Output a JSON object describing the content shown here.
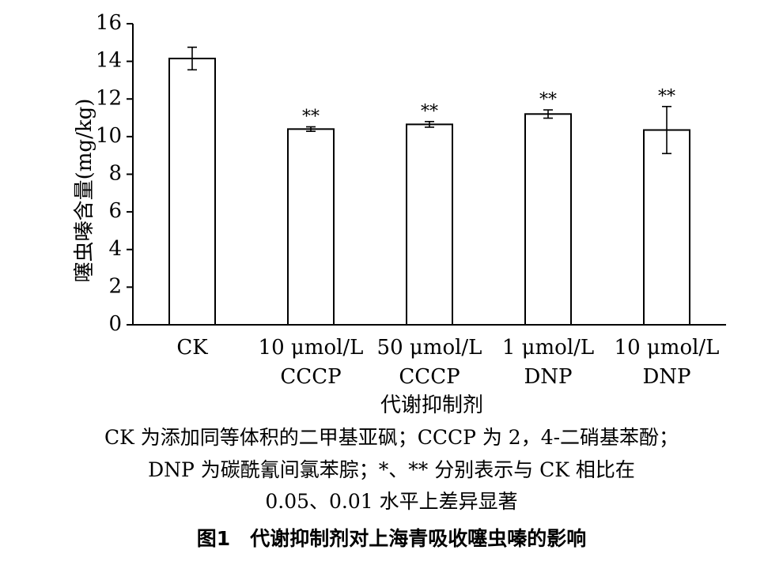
{
  "chart_data": {
    "type": "bar",
    "categories": [
      [
        "CK"
      ],
      [
        "10 μmol/L",
        "CCCP"
      ],
      [
        "50 μmol/L",
        "CCCP"
      ],
      [
        "1 μmol/L",
        "DNP"
      ],
      [
        "10 μmol/L",
        "DNP"
      ]
    ],
    "values": [
      14.15,
      10.4,
      10.65,
      11.2,
      10.35
    ],
    "errors": [
      0.6,
      0.12,
      0.15,
      0.22,
      1.25
    ],
    "significance": [
      "",
      "**",
      "**",
      "**",
      "**"
    ],
    "ylabel": "噻虫嗪含量(mg/kg)",
    "xlabel": "代谢抑制剂",
    "ylim": [
      0,
      16
    ],
    "yticks": [
      0,
      2,
      4,
      6,
      8,
      10,
      12,
      14,
      16
    ],
    "bar_color": "#ffffff",
    "edge_color": "#000000"
  },
  "notes": [
    "CK 为添加同等体积的二甲基亚砜；CCCP 为 2，4-二硝基苯酚；",
    "DNP 为碳酰氰间氯苯腙；*、** 分别表示与 CK 相比在",
    "0.05、0.01 水平上差异显著"
  ],
  "figure_caption": "图1　代谢抑制剂对上海青吸收噻虫嗪的影响"
}
